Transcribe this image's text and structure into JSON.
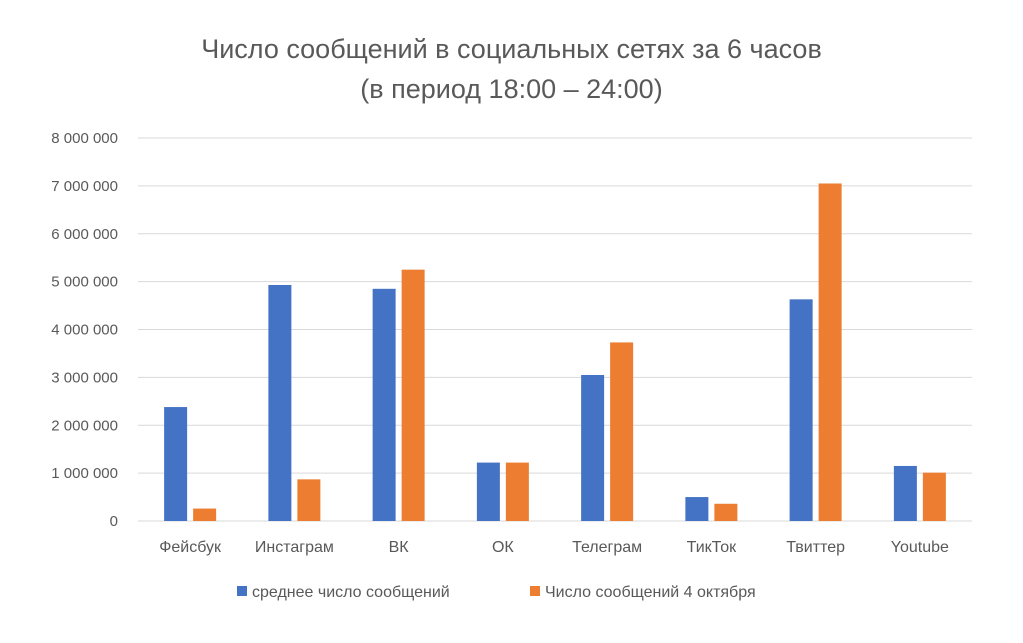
{
  "chart_data": {
    "type": "bar",
    "title": "Число сообщений в социальных сетях за 6 часов",
    "subtitle": "(в период 18:00 – 24:00)",
    "xlabel": "",
    "ylabel": "",
    "categories": [
      "Фейсбук",
      "Инстаграм",
      "ВК",
      "ОК",
      "Телеграм",
      "ТикТок",
      "Твиттер",
      "Youtube"
    ],
    "series": [
      {
        "name": "среднее число сообщений",
        "color": "#4472C4",
        "values": [
          2380000,
          4930000,
          4850000,
          1220000,
          3050000,
          500000,
          4630000,
          1150000
        ]
      },
      {
        "name": "Число сообщений 4 октября",
        "color": "#ED7D31",
        "values": [
          260000,
          870000,
          5250000,
          1220000,
          3730000,
          360000,
          7050000,
          1010000
        ]
      }
    ],
    "ylim": [
      0,
      8000000
    ],
    "yticks": [
      0,
      1000000,
      2000000,
      3000000,
      4000000,
      5000000,
      6000000,
      7000000,
      8000000
    ],
    "ytick_labels": [
      "0",
      "1 000 000",
      "2 000 000",
      "3 000 000",
      "4 000 000",
      "5 000 000",
      "6 000 000",
      "7 000 000",
      "8 000 000"
    ],
    "grid": true,
    "gridline_color": "#D9D9D9",
    "legend_position": "bottom"
  }
}
